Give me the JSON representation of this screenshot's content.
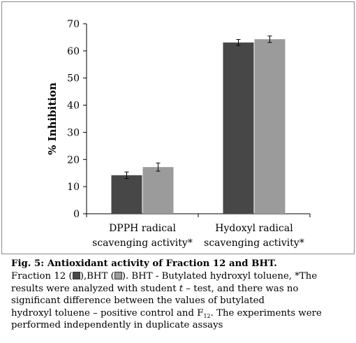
{
  "chart_data": {
    "type": "bar",
    "ylabel": "% Inhibition",
    "xlabel": "",
    "ylim": [
      0,
      70
    ],
    "yticks": [
      0,
      10,
      20,
      30,
      40,
      50,
      60,
      70
    ],
    "categories": [
      [
        "DPPH radical",
        "scavenging activity*"
      ],
      [
        "Hydoxyl radical",
        "scavenging activity*"
      ]
    ],
    "series": [
      {
        "values": [
          14.2,
          63.1
        ],
        "errors": [
          1.2,
          1.1
        ],
        "color": "#474747"
      },
      {
        "values": [
          17.2,
          64.3
        ],
        "errors": [
          1.5,
          1.2
        ],
        "color": "#9b9b9b"
      }
    ],
    "grid": false,
    "legend": "none"
  },
  "caption": {
    "title": "Fig. 5: Antioxidant activity of Fraction 12 and BHT.",
    "l1_a": "Fraction 12 (",
    "l1_b": "),BHT (",
    "l1_c": "). BHT - Butylated hydroxyl toluene, *The",
    "l2_a": "results were analyzed with student ",
    "l2_t": "t",
    "l2_b": " – test, and there was no",
    "l3": "significant difference between the values of butylated",
    "l4_a": "hydroxyl toluene – positive control and F",
    "l4_sub": "12",
    "l4_b": ". The experiments were",
    "l5": "performed independently in duplicate assays"
  }
}
